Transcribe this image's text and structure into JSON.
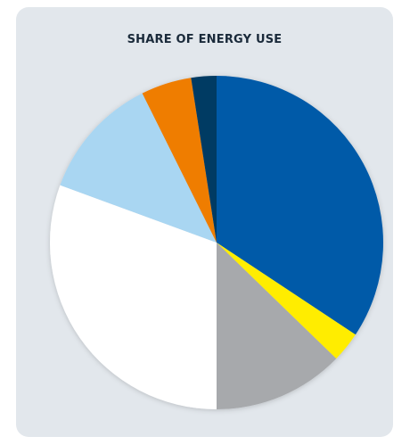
{
  "chart_data": {
    "type": "pie",
    "title": "SHARE OF ENERGY USE",
    "slices": [
      {
        "value": 35.0,
        "color": "#005aa8"
      },
      {
        "value": 3.0,
        "color": "#ffed00"
      },
      {
        "value": 13.0,
        "color": "#a7a9ac"
      },
      {
        "value": 31.2,
        "color": "#ffffff"
      },
      {
        "value": 12.3,
        "color": "#a9d6f2"
      },
      {
        "value": 5.0,
        "color": "#ef7d00"
      },
      {
        "value": 2.5,
        "color": "#003b63"
      }
    ]
  }
}
